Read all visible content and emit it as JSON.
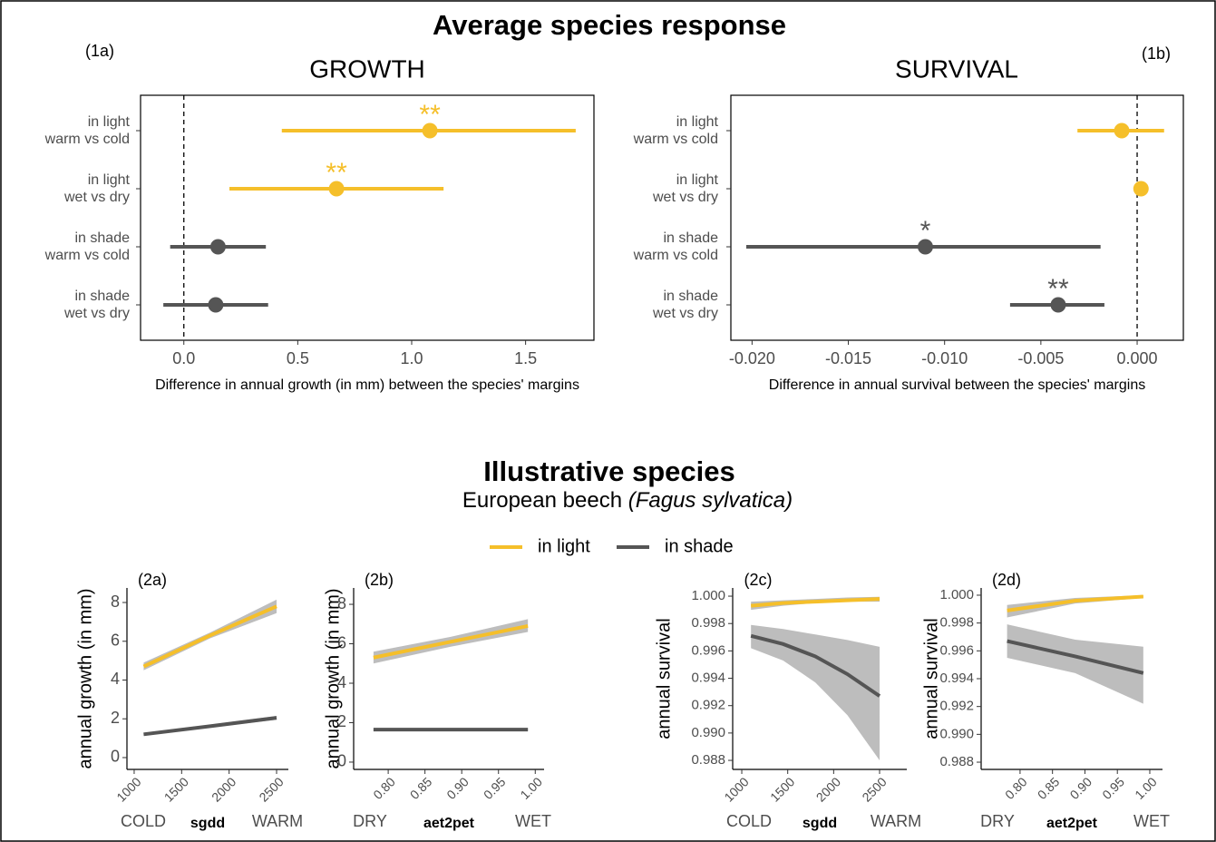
{
  "figure": {
    "title": "Average species response",
    "section_title": "Illustrative species",
    "subtitle": "European beech",
    "subtitle_species": "(Fagus sylvatica)"
  },
  "chart_data": [
    {
      "type": "forest",
      "panel": "(1a)",
      "title": "GROWTH",
      "xlabel": "Difference in annual growth (in mm) between the species' margins",
      "categories": [
        [
          "in light",
          "warm vs cold"
        ],
        [
          "in light",
          "wet vs dry"
        ],
        [
          "in shade",
          "warm vs cold"
        ],
        [
          "in shade",
          "wet vs dry"
        ]
      ],
      "values": [
        1.08,
        0.67,
        0.15,
        0.14
      ],
      "lower": [
        0.43,
        0.2,
        -0.06,
        -0.09
      ],
      "upper": [
        1.72,
        1.14,
        0.36,
        0.37
      ],
      "colors": [
        "#f5bf2a",
        "#f5bf2a",
        "#555555",
        "#555555"
      ],
      "significance": [
        "**",
        "**",
        null,
        null
      ],
      "xlim": [
        -0.19,
        1.8
      ],
      "xticks": [
        {
          "value": 0,
          "label": "0.0"
        },
        0.5,
        {
          "value": 1,
          "label": "1.0"
        },
        1.5
      ],
      "vline": 0
    },
    {
      "type": "forest",
      "panel": "(1b)",
      "title": "SURVIVAL",
      "xlabel": "Difference in annual survival between the species' margins",
      "categories": [
        [
          "in light",
          "warm vs cold"
        ],
        [
          "in light",
          "wet vs dry"
        ],
        [
          "in shade",
          "warm vs cold"
        ],
        [
          "in shade",
          "wet vs dry"
        ]
      ],
      "values": [
        -0.0008,
        0.0002,
        -0.011,
        -0.0041
      ],
      "lower": [
        -0.0031,
        0.0001,
        -0.0203,
        -0.0066
      ],
      "upper": [
        0.0014,
        0.0003,
        -0.0019,
        -0.0017
      ],
      "colors": [
        "#f5bf2a",
        "#f5bf2a",
        "#555555",
        "#555555"
      ],
      "significance": [
        null,
        null,
        "*",
        "**"
      ],
      "xlim": [
        -0.0211,
        0.0024
      ],
      "xticks": [
        {
          "value": -0.02,
          "label": "-0.020"
        },
        {
          "value": -0.015,
          "label": "-0.015"
        },
        {
          "value": -0.01,
          "label": "-0.010"
        },
        {
          "value": -0.005,
          "label": "-0.005"
        },
        {
          "value": 0,
          "label": "0.000"
        }
      ],
      "vline": 0
    },
    {
      "type": "ribbon",
      "panel": "(2a)",
      "ylabel": "annual growth (in mm)",
      "xlabel": "sgdd",
      "x_low_label": "COLD",
      "x_high_label": "WARM",
      "x": [
        1100,
        1800,
        2500
      ],
      "series": [
        {
          "name": "in light",
          "color": "#f5bf2a",
          "values": [
            4.7,
            6.3,
            7.8
          ],
          "lower": [
            4.5,
            6.15,
            7.45
          ],
          "upper": [
            4.9,
            6.45,
            8.15
          ]
        },
        {
          "name": "in shade",
          "color": "#555555",
          "values": [
            1.2,
            1.62,
            2.05
          ],
          "lower": [
            1.12,
            1.55,
            1.95
          ],
          "upper": [
            1.28,
            1.7,
            2.15
          ]
        }
      ],
      "xlim": [
        924,
        2624
      ],
      "xticks": [
        1000,
        1500,
        2000,
        2500
      ],
      "ylim": [
        -0.61,
        8.75
      ],
      "yticks": [
        0,
        2,
        4,
        6,
        8
      ]
    },
    {
      "type": "ribbon",
      "panel": "(2b)",
      "ylabel": "annual growth (in mm)",
      "xlabel": "aet2pet",
      "x_low_label": "DRY",
      "x_high_label": "WET",
      "x": [
        0.78,
        0.885,
        0.99
      ],
      "series": [
        {
          "color": "#f5bf2a",
          "values": [
            5.3,
            6.1,
            6.9
          ],
          "lower": [
            5.0,
            5.85,
            6.6
          ],
          "upper": [
            5.6,
            6.35,
            7.25
          ]
        },
        {
          "color": "#555555",
          "values": [
            1.65,
            1.65,
            1.65
          ],
          "lower": [
            1.58,
            1.58,
            1.58
          ],
          "upper": [
            1.72,
            1.72,
            1.72
          ]
        }
      ],
      "xlim": [
        0.753,
        1.012
      ],
      "xticks": [
        {
          "value": 0.8,
          "label": "0.80"
        },
        0.85,
        {
          "value": 0.9,
          "label": "0.90"
        },
        0.95,
        {
          "value": 1,
          "label": "1.00"
        }
      ],
      "ylim": [
        -0.37,
        8.83
      ],
      "yticks": [
        0,
        2,
        4,
        6,
        8
      ]
    },
    {
      "type": "ribbon",
      "panel": "(2c)",
      "ylabel": "annual survival",
      "xlabel": "sgdd",
      "x_low_label": "COLD",
      "x_high_label": "WARM",
      "x": [
        1100,
        1450,
        1800,
        2150,
        2500
      ],
      "series": [
        {
          "color": "#f5bf2a",
          "values": [
            0.9993,
            0.9995,
            0.9996,
            0.9997,
            0.9998
          ],
          "lower": [
            0.999,
            0.9993,
            0.9995,
            0.9996,
            0.9996
          ],
          "upper": [
            0.9996,
            0.9997,
            0.9998,
            0.9999,
            0.99995
          ]
        },
        {
          "color": "#555555",
          "values": [
            0.9971,
            0.9965,
            0.9956,
            0.9943,
            0.9927
          ],
          "lower": [
            0.9962,
            0.9953,
            0.9937,
            0.9913,
            0.988
          ],
          "upper": [
            0.9979,
            0.9976,
            0.9972,
            0.9968,
            0.9963
          ]
        }
      ],
      "xlim": [
        901,
        2796
      ],
      "xticks": [
        1000,
        1500,
        2000,
        2500
      ],
      "ylim": [
        0.98734,
        1.0006
      ],
      "yticks": [
        0.988,
        {
          "value": 0.99,
          "label": "0.990"
        },
        0.992,
        0.994,
        0.996,
        0.998,
        {
          "value": 1,
          "label": "1.000"
        }
      ]
    },
    {
      "type": "ribbon",
      "panel": "(2d)",
      "ylabel": "annual survival",
      "xlabel": "aet2pet",
      "x_low_label": "DRY",
      "x_high_label": "WET",
      "x": [
        0.78,
        0.885,
        0.99
      ],
      "series": [
        {
          "color": "#f5bf2a",
          "values": [
            0.9989,
            0.9996,
            0.9999
          ],
          "lower": [
            0.9984,
            0.9994,
            0.9998
          ],
          "upper": [
            0.9993,
            0.9998,
            1.0
          ]
        },
        {
          "color": "#555555",
          "values": [
            0.9967,
            0.9956,
            0.9944
          ],
          "lower": [
            0.9955,
            0.9944,
            0.9922
          ],
          "upper": [
            0.9979,
            0.9968,
            0.9963
          ]
        }
      ],
      "xlim": [
        0.74,
        1.0196
      ],
      "xticks": [
        {
          "value": 0.8,
          "label": "0.80"
        },
        0.85,
        {
          "value": 0.9,
          "label": "0.90"
        },
        0.95,
        {
          "value": 1,
          "label": "1.00"
        }
      ],
      "ylim": [
        0.98748,
        1.00052
      ],
      "yticks": [
        0.988,
        {
          "value": 0.99,
          "label": "0.990"
        },
        0.992,
        0.994,
        0.996,
        0.998,
        {
          "value": 1,
          "label": "1.000"
        }
      ]
    }
  ]
}
